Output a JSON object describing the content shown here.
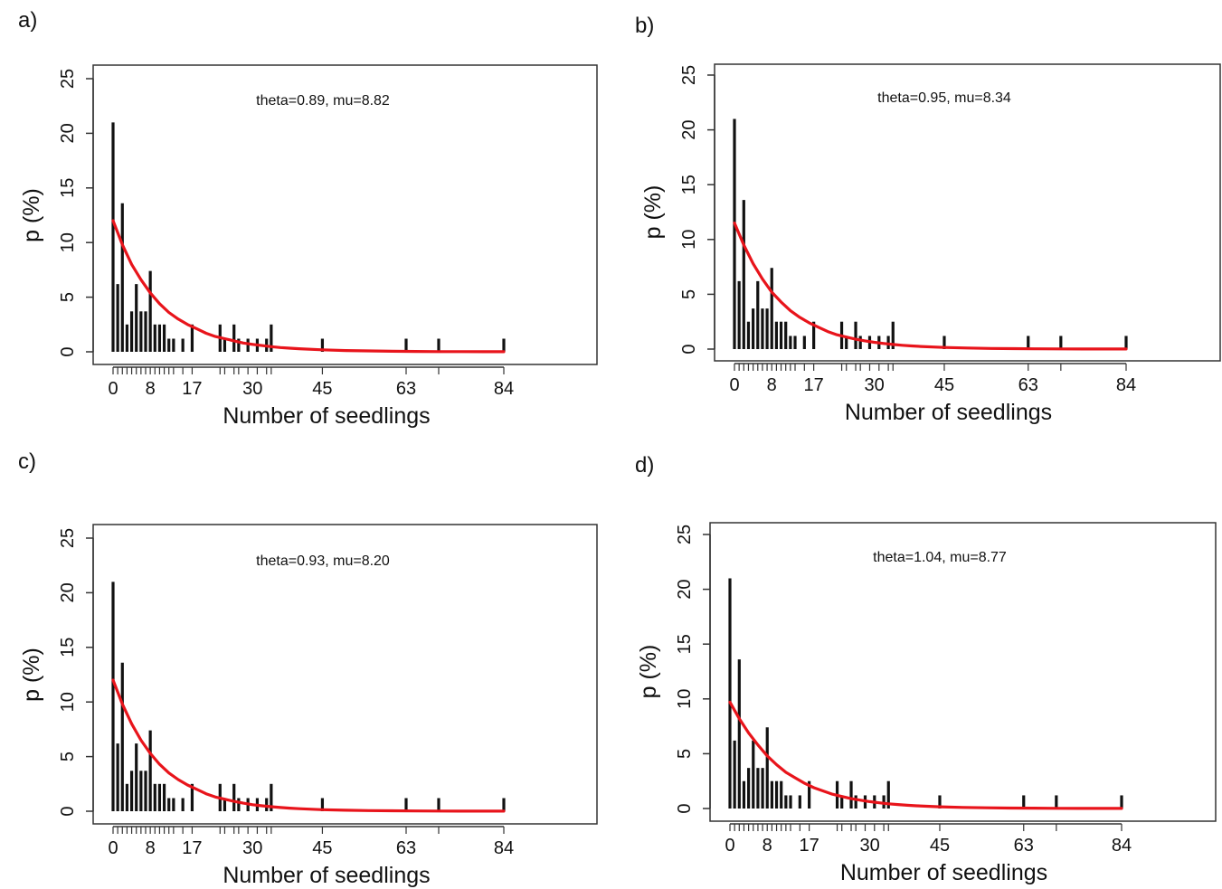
{
  "chart_data": [
    {
      "type": "bar",
      "panel_label": "a)",
      "annotation": "theta=0.89, mu=8.82",
      "xlabel": "Number of seedlings",
      "ylabel": "p (%)",
      "ylim": [
        0,
        25
      ],
      "yticks": [
        "0",
        "5",
        "10",
        "15",
        "20",
        "25"
      ],
      "xticks": [
        "0",
        "8",
        "17",
        "30",
        "45",
        "63",
        "84"
      ],
      "grid": false,
      "bars": {
        "x": [
          0,
          1,
          2,
          3,
          4,
          5,
          6,
          7,
          8,
          9,
          10,
          11,
          12,
          13,
          15,
          17,
          23,
          24,
          26,
          27,
          29,
          31,
          33,
          34,
          45,
          63,
          70,
          84
        ],
        "y": [
          21,
          6.2,
          13.6,
          2.5,
          3.7,
          6.2,
          3.7,
          3.7,
          7.4,
          2.5,
          2.5,
          2.5,
          1.2,
          1.2,
          1.2,
          2.5,
          2.5,
          1.2,
          2.5,
          1.2,
          1.2,
          1.2,
          1.2,
          2.5,
          1.2,
          1.2,
          1.2,
          1.2
        ]
      },
      "fit": {
        "color": "#e8141b",
        "x": [
          0,
          2,
          4,
          6,
          8,
          10,
          12,
          14,
          16,
          18,
          20,
          22,
          24,
          26,
          28,
          30,
          32,
          34,
          36,
          38,
          40,
          45,
          50,
          55,
          60,
          65,
          70,
          75,
          80,
          84
        ],
        "y": [
          12.0,
          9.8,
          8.0,
          6.6,
          5.4,
          4.4,
          3.6,
          3.0,
          2.5,
          2.1,
          1.7,
          1.4,
          1.2,
          1.0,
          0.8,
          0.68,
          0.57,
          0.47,
          0.39,
          0.33,
          0.28,
          0.18,
          0.12,
          0.08,
          0.05,
          0.03,
          0.02,
          0.015,
          0.01,
          0.01
        ]
      }
    },
    {
      "type": "bar",
      "panel_label": "b)",
      "annotation": "theta=0.95, mu=8.34",
      "xlabel": "Number of seedlings",
      "ylabel": "p (%)",
      "ylim": [
        0,
        25
      ],
      "yticks": [
        "0",
        "5",
        "10",
        "15",
        "20",
        "25"
      ],
      "xticks": [
        "0",
        "8",
        "17",
        "30",
        "45",
        "63",
        "84"
      ],
      "grid": false,
      "bars": {
        "x": [
          0,
          1,
          2,
          3,
          4,
          5,
          6,
          7,
          8,
          9,
          10,
          11,
          12,
          13,
          15,
          17,
          23,
          24,
          26,
          27,
          29,
          31,
          33,
          34,
          45,
          63,
          70,
          84
        ],
        "y": [
          21,
          6.2,
          13.6,
          2.5,
          3.7,
          6.2,
          3.7,
          3.7,
          7.4,
          2.5,
          2.5,
          2.5,
          1.2,
          1.2,
          1.2,
          2.5,
          2.5,
          1.2,
          2.5,
          1.2,
          1.2,
          1.2,
          1.2,
          2.5,
          1.2,
          1.2,
          1.2,
          1.2
        ]
      },
      "fit": {
        "color": "#e8141b",
        "x": [
          0,
          2,
          4,
          6,
          8,
          10,
          12,
          14,
          16,
          18,
          20,
          22,
          24,
          26,
          28,
          30,
          32,
          34,
          36,
          38,
          40,
          45,
          50,
          55,
          60,
          65,
          70,
          75,
          80,
          84
        ],
        "y": [
          11.5,
          9.5,
          7.8,
          6.4,
          5.2,
          4.3,
          3.5,
          2.9,
          2.4,
          2.0,
          1.6,
          1.3,
          1.1,
          0.9,
          0.75,
          0.62,
          0.51,
          0.42,
          0.35,
          0.29,
          0.24,
          0.15,
          0.1,
          0.06,
          0.04,
          0.025,
          0.015,
          0.01,
          0.01,
          0.01
        ]
      }
    },
    {
      "type": "bar",
      "panel_label": "c)",
      "annotation": "theta=0.93, mu=8.20",
      "xlabel": "Number of seedlings",
      "ylabel": "p (%)",
      "ylim": [
        0,
        25
      ],
      "yticks": [
        "0",
        "5",
        "10",
        "15",
        "20",
        "25"
      ],
      "xticks": [
        "0",
        "8",
        "17",
        "30",
        "45",
        "63",
        "84"
      ],
      "grid": false,
      "bars": {
        "x": [
          0,
          1,
          2,
          3,
          4,
          5,
          6,
          7,
          8,
          9,
          10,
          11,
          12,
          13,
          15,
          17,
          23,
          24,
          26,
          27,
          29,
          31,
          33,
          34,
          45,
          63,
          70,
          84
        ],
        "y": [
          21,
          6.2,
          13.6,
          2.5,
          3.7,
          6.2,
          3.7,
          3.7,
          7.4,
          2.5,
          2.5,
          2.5,
          1.2,
          1.2,
          1.2,
          2.5,
          2.5,
          1.2,
          2.5,
          1.2,
          1.2,
          1.2,
          1.2,
          2.5,
          1.2,
          1.2,
          1.2,
          1.2
        ]
      },
      "fit": {
        "color": "#e8141b",
        "x": [
          0,
          2,
          4,
          6,
          8,
          10,
          12,
          14,
          16,
          18,
          20,
          22,
          24,
          26,
          28,
          30,
          32,
          34,
          36,
          38,
          40,
          45,
          50,
          55,
          60,
          65,
          70,
          75,
          80,
          84
        ],
        "y": [
          12.0,
          9.8,
          8.0,
          6.5,
          5.3,
          4.3,
          3.5,
          2.9,
          2.4,
          2.0,
          1.6,
          1.3,
          1.1,
          0.9,
          0.74,
          0.6,
          0.5,
          0.41,
          0.34,
          0.28,
          0.23,
          0.14,
          0.09,
          0.06,
          0.04,
          0.025,
          0.015,
          0.01,
          0.01,
          0.01
        ]
      }
    },
    {
      "type": "bar",
      "panel_label": "d)",
      "annotation": "theta=1.04, mu=8.77",
      "xlabel": "Number of seedlings",
      "ylabel": "p (%)",
      "ylim": [
        0,
        25
      ],
      "yticks": [
        "0",
        "5",
        "10",
        "15",
        "20",
        "25"
      ],
      "xticks": [
        "0",
        "8",
        "17",
        "30",
        "45",
        "63",
        "84"
      ],
      "grid": false,
      "bars": {
        "x": [
          0,
          1,
          2,
          3,
          4,
          5,
          6,
          7,
          8,
          9,
          10,
          11,
          12,
          13,
          15,
          17,
          23,
          24,
          26,
          27,
          29,
          31,
          33,
          34,
          45,
          63,
          70,
          84
        ],
        "y": [
          21,
          6.2,
          13.6,
          2.5,
          3.7,
          6.2,
          3.7,
          3.7,
          7.4,
          2.5,
          2.5,
          2.5,
          1.2,
          1.2,
          1.2,
          2.5,
          2.5,
          1.2,
          2.5,
          1.2,
          1.2,
          1.2,
          1.2,
          2.5,
          1.2,
          1.2,
          1.2,
          1.2
        ]
      },
      "fit": {
        "color": "#e8141b",
        "x": [
          0,
          2,
          4,
          6,
          8,
          10,
          12,
          14,
          16,
          18,
          20,
          22,
          24,
          26,
          28,
          30,
          32,
          34,
          36,
          38,
          40,
          45,
          50,
          55,
          60,
          65,
          70,
          75,
          80,
          84
        ],
        "y": [
          9.7,
          8.2,
          6.9,
          5.8,
          4.8,
          4.0,
          3.3,
          2.8,
          2.3,
          1.9,
          1.6,
          1.3,
          1.1,
          0.9,
          0.76,
          0.63,
          0.52,
          0.43,
          0.36,
          0.3,
          0.25,
          0.16,
          0.1,
          0.07,
          0.045,
          0.03,
          0.02,
          0.012,
          0.01,
          0.01
        ]
      }
    }
  ]
}
